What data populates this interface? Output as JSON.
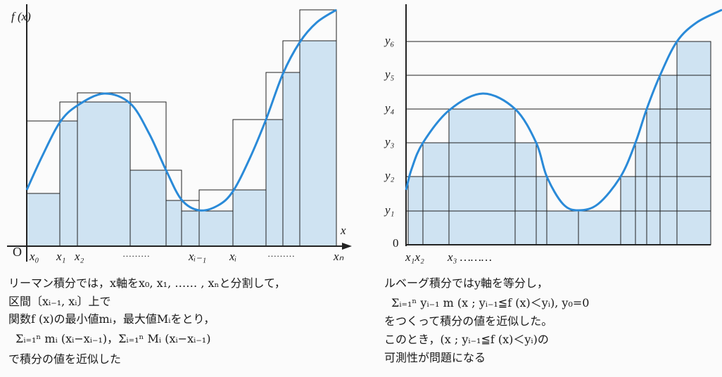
{
  "left_figure": {
    "y_axis_label": "f (x)",
    "x_axis_label": "x",
    "origin_label": "O",
    "x_ticks": [
      "x₀",
      "x₁",
      "x₂",
      "………",
      "xᵢ₋₁",
      "xᵢ",
      "………",
      "xₙ"
    ],
    "caption_lines": [
      "リーマン積分では，x軸をx₀, x₁, …… , xₙと分割して，",
      "区間〔xᵢ₋₁, xᵢ〕上で",
      "関数f (x)の最小値mᵢ，最大値Mᵢをとり，",
      "Σᵢ₌₁ⁿ mᵢ (xᵢ−xᵢ₋₁)，Σᵢ₌₁ⁿ Mᵢ (xᵢ−xᵢ₋₁)",
      "で積分の値を近似した"
    ]
  },
  "right_figure": {
    "y_ticks": [
      "y₆",
      "y₅",
      "y₄",
      "y₃",
      "y₂",
      "y₁",
      "0"
    ],
    "x_ticks": [
      "x₁x₂",
      "x₃ ………"
    ],
    "caption_lines": [
      "ルベーグ積分ではy軸を等分し，",
      "Σᵢ₌₁ⁿ yᵢ₋₁ m (x ; yᵢ₋₁≦f (x)＜yᵢ), y₀=0",
      "をつくって積分の値を近似した。",
      "このとき，(x ; yᵢ₋₁≦f (x)＜yᵢ)の",
      "可測性が問題になる"
    ]
  },
  "colors": {
    "curve": "#2a8ad8",
    "fill": "#cfe3f2",
    "line": "#222222"
  }
}
